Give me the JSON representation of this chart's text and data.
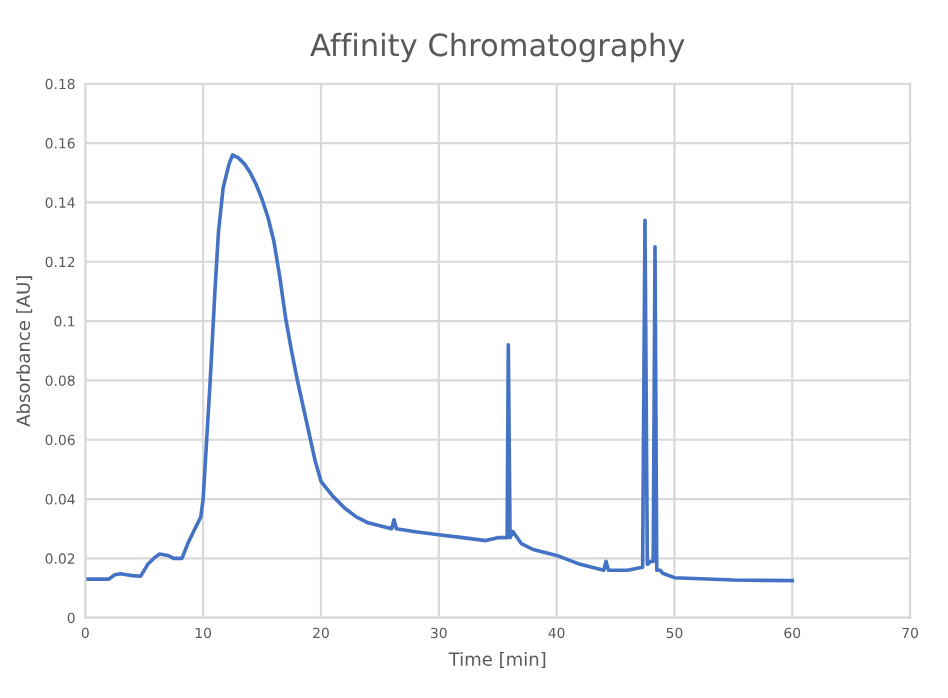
{
  "chart_data": {
    "type": "line",
    "title": "Affinity Chromatography",
    "xlabel": "Time [min]",
    "ylabel": "Absorbance [AU]",
    "xlim": [
      0,
      70
    ],
    "xticks": [
      0,
      10,
      20,
      30,
      40,
      50,
      60,
      70
    ],
    "ylim": [
      0,
      0.18
    ],
    "yticks": [
      0,
      0.02,
      0.04,
      0.06,
      0.08,
      0.1,
      0.12,
      0.14,
      0.16,
      0.18
    ],
    "grid": true,
    "marker": "none",
    "line_style": "solid",
    "series": [
      {
        "color": "#4472c4",
        "x": [
          0,
          2,
          2.5,
          3,
          3.5,
          4,
          4.7,
          5.3,
          5.8,
          6.3,
          7,
          7.5,
          8.2,
          8.7,
          9.3,
          9.8,
          10,
          10.3,
          10.6,
          11,
          11.3,
          11.7,
          12.2,
          12.5,
          13,
          13.5,
          14,
          14.5,
          15,
          15.5,
          16,
          16.5,
          17,
          17.5,
          18,
          18.5,
          19,
          19.5,
          20,
          21,
          22,
          23,
          24,
          25,
          26,
          26.2,
          26.4,
          28,
          30,
          32,
          34,
          35,
          35.8,
          35.9,
          36.05,
          36.3,
          37,
          38,
          40,
          42,
          44,
          44.2,
          44.4,
          46,
          47.3,
          47.5,
          47.7,
          48,
          48.2,
          48.35,
          48.5,
          48.8,
          49,
          50,
          55,
          60
        ],
        "values": [
          0.013,
          0.013,
          0.0145,
          0.0148,
          0.0145,
          0.0142,
          0.014,
          0.018,
          0.02,
          0.0215,
          0.021,
          0.02,
          0.02,
          0.025,
          0.03,
          0.034,
          0.04,
          0.06,
          0.08,
          0.11,
          0.13,
          0.145,
          0.153,
          0.156,
          0.155,
          0.153,
          0.15,
          0.146,
          0.141,
          0.135,
          0.127,
          0.115,
          0.101,
          0.09,
          0.08,
          0.071,
          0.062,
          0.053,
          0.046,
          0.041,
          0.037,
          0.034,
          0.032,
          0.031,
          0.03,
          0.033,
          0.03,
          0.029,
          0.028,
          0.027,
          0.026,
          0.027,
          0.027,
          0.092,
          0.027,
          0.029,
          0.025,
          0.023,
          0.021,
          0.018,
          0.016,
          0.019,
          0.016,
          0.016,
          0.017,
          0.134,
          0.018,
          0.019,
          0.019,
          0.125,
          0.016,
          0.016,
          0.015,
          0.0135,
          0.0127,
          0.0125
        ]
      }
    ]
  }
}
